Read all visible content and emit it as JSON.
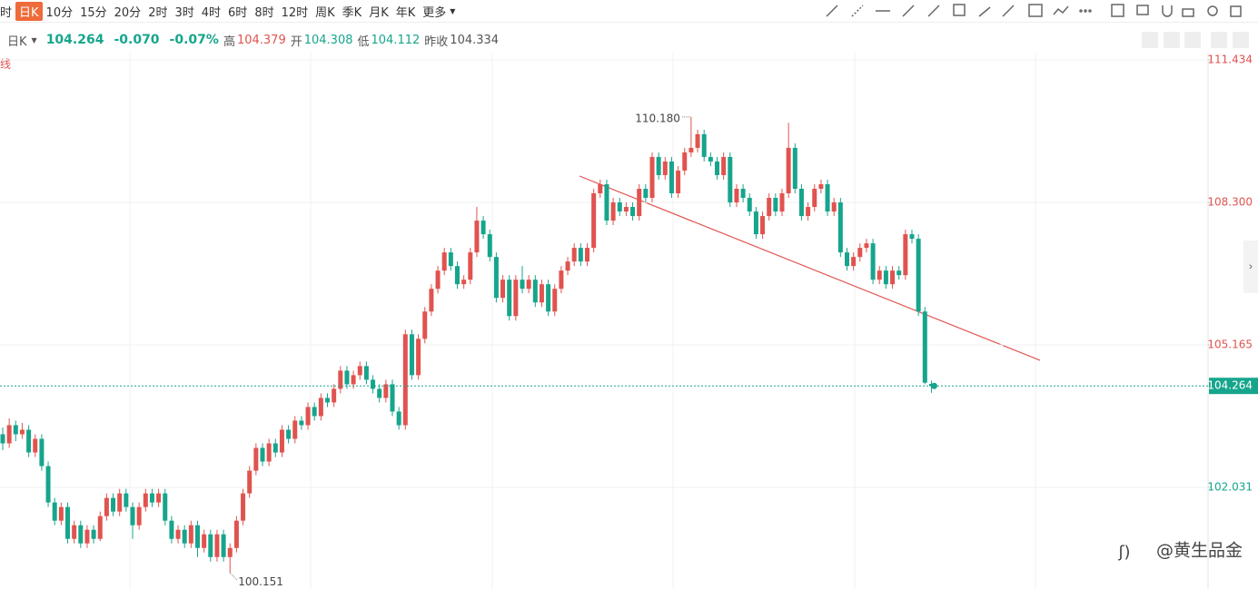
{
  "toolbar": {
    "cut": "时",
    "periods": [
      "日K",
      "10分",
      "15分",
      "20分",
      "2时",
      "3时",
      "4时",
      "6时",
      "8时",
      "12时",
      "周K",
      "季K",
      "月K",
      "年K"
    ],
    "more": "更多"
  },
  "header": {
    "period": "日K",
    "price": "104.264",
    "change": "-0.070",
    "change_pct": "-0.07%",
    "high_label": "高",
    "high": "104.379",
    "open_label": "开",
    "open": "104.308",
    "low_label": "低",
    "low": "104.112",
    "prev_label": "昨收",
    "prev": "104.334"
  },
  "side_note": "线",
  "watermark": "@黄生品金",
  "chart_data": {
    "type": "candlestick",
    "up_color": "#e0534f",
    "down_color": "#16a58c",
    "ylim": [
      99.797,
      111.594
    ],
    "yticks": [
      111.434,
      {
        "value": 108.3,
        "label": "108.300"
      },
      105.165,
      102.031
    ],
    "grid": true,
    "last_price": 104.264,
    "annotations": [
      {
        "value": 110.18,
        "label": "110.180",
        "candle": 106
      },
      {
        "value": 100.151,
        "label": "100.151",
        "candle": 35
      }
    ],
    "ohlc": [
      [
        103.2,
        103.35,
        102.85,
        103.0
      ],
      [
        103.0,
        103.55,
        102.9,
        103.4
      ],
      [
        103.4,
        103.5,
        103.05,
        103.2
      ],
      [
        103.2,
        103.45,
        103.1,
        103.3
      ],
      [
        103.3,
        103.4,
        102.7,
        102.8
      ],
      [
        102.8,
        103.2,
        102.7,
        103.1
      ],
      [
        103.1,
        103.2,
        102.4,
        102.5
      ],
      [
        102.5,
        102.6,
        101.6,
        101.7
      ],
      [
        101.7,
        101.8,
        101.2,
        101.3
      ],
      [
        101.3,
        101.7,
        101.2,
        101.6
      ],
      [
        101.6,
        101.7,
        100.8,
        100.9
      ],
      [
        100.9,
        101.3,
        100.8,
        101.2
      ],
      [
        101.2,
        101.3,
        100.7,
        100.8
      ],
      [
        100.8,
        101.2,
        100.7,
        101.1
      ],
      [
        101.1,
        101.2,
        100.8,
        100.9
      ],
      [
        100.9,
        101.5,
        100.85,
        101.4
      ],
      [
        101.4,
        101.9,
        101.3,
        101.8
      ],
      [
        101.8,
        101.9,
        101.4,
        101.5
      ],
      [
        101.5,
        102.0,
        101.4,
        101.9
      ],
      [
        101.9,
        102.0,
        101.5,
        101.6
      ],
      [
        101.6,
        101.7,
        100.9,
        101.2
      ],
      [
        101.2,
        101.7,
        101.1,
        101.6
      ],
      [
        101.6,
        102.0,
        101.5,
        101.9
      ],
      [
        101.9,
        102.0,
        101.6,
        101.7
      ],
      [
        101.7,
        102.0,
        101.6,
        101.9
      ],
      [
        101.9,
        102.0,
        101.2,
        101.3
      ],
      [
        101.3,
        101.4,
        100.8,
        100.9
      ],
      [
        100.9,
        101.2,
        100.8,
        101.1
      ],
      [
        101.1,
        101.2,
        100.7,
        100.8
      ],
      [
        100.8,
        101.3,
        100.7,
        101.2
      ],
      [
        101.2,
        101.3,
        100.5,
        100.7
      ],
      [
        100.7,
        101.1,
        100.6,
        101.0
      ],
      [
        101.0,
        101.1,
        100.4,
        100.5
      ],
      [
        100.5,
        101.1,
        100.4,
        101.0
      ],
      [
        101.0,
        101.1,
        100.4,
        100.5
      ],
      [
        100.5,
        100.8,
        100.151,
        100.7
      ],
      [
        100.7,
        101.4,
        100.6,
        101.3
      ],
      [
        101.3,
        102.0,
        101.2,
        101.9
      ],
      [
        101.9,
        102.5,
        101.8,
        102.4
      ],
      [
        102.4,
        103.0,
        102.3,
        102.9
      ],
      [
        102.9,
        103.0,
        102.5,
        102.6
      ],
      [
        102.6,
        103.1,
        102.5,
        103.0
      ],
      [
        103.0,
        103.1,
        102.7,
        102.8
      ],
      [
        102.8,
        103.4,
        102.7,
        103.3
      ],
      [
        103.3,
        103.4,
        103.0,
        103.1
      ],
      [
        103.1,
        103.6,
        103.0,
        103.5
      ],
      [
        103.5,
        103.6,
        103.3,
        103.4
      ],
      [
        103.4,
        103.9,
        103.3,
        103.8
      ],
      [
        103.8,
        103.9,
        103.5,
        103.6
      ],
      [
        103.6,
        104.1,
        103.5,
        104.0
      ],
      [
        104.0,
        104.1,
        103.8,
        103.9
      ],
      [
        103.9,
        104.3,
        103.8,
        104.2
      ],
      [
        104.2,
        104.7,
        104.1,
        104.6
      ],
      [
        104.6,
        104.7,
        104.2,
        104.3
      ],
      [
        104.3,
        104.6,
        104.2,
        104.5
      ],
      [
        104.5,
        104.8,
        104.4,
        104.7
      ],
      [
        104.7,
        104.8,
        104.3,
        104.4
      ],
      [
        104.4,
        104.5,
        104.1,
        104.2
      ],
      [
        104.2,
        104.3,
        103.9,
        104.0
      ],
      [
        104.0,
        104.4,
        103.9,
        104.3
      ],
      [
        104.3,
        104.4,
        103.6,
        103.7
      ],
      [
        103.7,
        103.8,
        103.3,
        103.4
      ],
      [
        103.4,
        105.5,
        103.3,
        105.4
      ],
      [
        105.4,
        105.5,
        104.4,
        104.5
      ],
      [
        104.5,
        105.4,
        104.4,
        105.3
      ],
      [
        105.3,
        106.0,
        105.2,
        105.9
      ],
      [
        105.9,
        106.5,
        105.8,
        106.4
      ],
      [
        106.4,
        106.9,
        106.3,
        106.8
      ],
      [
        106.8,
        107.3,
        106.7,
        107.2
      ],
      [
        107.2,
        107.3,
        106.8,
        106.9
      ],
      [
        106.9,
        107.0,
        106.4,
        106.5
      ],
      [
        106.5,
        106.7,
        106.4,
        106.6
      ],
      [
        106.6,
        107.3,
        106.5,
        107.2
      ],
      [
        107.2,
        108.2,
        107.1,
        107.9
      ],
      [
        107.9,
        108.0,
        107.5,
        107.6
      ],
      [
        107.6,
        107.7,
        107.0,
        107.1
      ],
      [
        107.1,
        107.2,
        106.1,
        106.2
      ],
      [
        106.2,
        106.7,
        106.1,
        106.6
      ],
      [
        106.6,
        106.7,
        105.7,
        105.8
      ],
      [
        105.8,
        106.7,
        105.7,
        106.6
      ],
      [
        106.6,
        106.9,
        106.3,
        106.4
      ],
      [
        106.4,
        106.7,
        106.3,
        106.6
      ],
      [
        106.6,
        106.7,
        106.0,
        106.1
      ],
      [
        106.1,
        106.6,
        106.0,
        106.5
      ],
      [
        106.5,
        106.6,
        105.8,
        105.9
      ],
      [
        105.9,
        106.5,
        105.8,
        106.4
      ],
      [
        106.4,
        106.9,
        106.3,
        106.8
      ],
      [
        106.8,
        107.1,
        106.7,
        107.0
      ],
      [
        107.0,
        107.4,
        106.9,
        107.3
      ],
      [
        107.3,
        107.4,
        106.9,
        107.0
      ],
      [
        107.0,
        107.4,
        106.9,
        107.3
      ],
      [
        107.3,
        108.6,
        107.2,
        108.5
      ],
      [
        108.5,
        108.8,
        108.4,
        108.7
      ],
      [
        108.7,
        108.8,
        107.8,
        107.9
      ],
      [
        107.9,
        108.4,
        107.8,
        108.3
      ],
      [
        108.3,
        108.4,
        108.0,
        108.1
      ],
      [
        108.1,
        108.3,
        108.0,
        108.2
      ],
      [
        108.2,
        108.3,
        107.9,
        108.0
      ],
      [
        108.0,
        108.7,
        107.9,
        108.6
      ],
      [
        108.6,
        108.7,
        108.3,
        108.4
      ],
      [
        108.4,
        109.4,
        108.3,
        109.3
      ],
      [
        109.3,
        109.4,
        108.8,
        108.9
      ],
      [
        108.9,
        109.3,
        108.8,
        109.2
      ],
      [
        109.2,
        109.3,
        108.4,
        108.5
      ],
      [
        108.5,
        109.1,
        108.4,
        109.0
      ],
      [
        109.0,
        109.5,
        108.9,
        109.4
      ],
      [
        109.4,
        110.18,
        109.3,
        109.5
      ],
      [
        109.5,
        109.9,
        109.4,
        109.8
      ],
      [
        109.8,
        109.9,
        109.2,
        109.3
      ],
      [
        109.3,
        109.4,
        109.1,
        109.2
      ],
      [
        109.2,
        109.3,
        108.8,
        108.9
      ],
      [
        108.9,
        109.4,
        108.8,
        109.3
      ],
      [
        109.3,
        109.4,
        108.2,
        108.3
      ],
      [
        108.3,
        108.7,
        108.2,
        108.6
      ],
      [
        108.6,
        108.7,
        108.3,
        108.4
      ],
      [
        108.4,
        108.5,
        108.0,
        108.1
      ],
      [
        108.1,
        108.2,
        107.5,
        107.6
      ],
      [
        107.6,
        108.1,
        107.5,
        108.0
      ],
      [
        108.0,
        108.5,
        107.9,
        108.4
      ],
      [
        108.4,
        108.5,
        108.0,
        108.1
      ],
      [
        108.1,
        108.6,
        108.0,
        108.5
      ],
      [
        108.5,
        110.05,
        108.4,
        109.5
      ],
      [
        109.5,
        109.6,
        108.5,
        108.6
      ],
      [
        108.6,
        108.7,
        107.9,
        108.0
      ],
      [
        108.0,
        108.3,
        107.9,
        108.2
      ],
      [
        108.2,
        108.7,
        108.1,
        108.6
      ],
      [
        108.6,
        108.8,
        108.5,
        108.7
      ],
      [
        108.7,
        108.8,
        108.0,
        108.1
      ],
      [
        108.1,
        108.4,
        108.0,
        108.3
      ],
      [
        108.3,
        108.4,
        107.1,
        107.2
      ],
      [
        107.2,
        107.3,
        106.8,
        106.9
      ],
      [
        106.9,
        107.2,
        106.8,
        107.1
      ],
      [
        107.1,
        107.4,
        107.0,
        107.3
      ],
      [
        107.3,
        107.5,
        107.2,
        107.4
      ],
      [
        107.4,
        107.5,
        106.5,
        106.6
      ],
      [
        106.6,
        106.9,
        106.5,
        106.8
      ],
      [
        106.8,
        106.9,
        106.4,
        106.5
      ],
      [
        106.5,
        106.9,
        106.4,
        106.8
      ],
      [
        106.8,
        106.9,
        106.6,
        106.7
      ],
      [
        106.7,
        107.7,
        106.6,
        107.6
      ],
      [
        107.6,
        107.7,
        107.4,
        107.5
      ],
      [
        107.5,
        107.6,
        105.8,
        105.9
      ],
      [
        105.9,
        106.0,
        104.3,
        104.334
      ],
      [
        104.308,
        104.379,
        104.112,
        104.264
      ]
    ]
  }
}
